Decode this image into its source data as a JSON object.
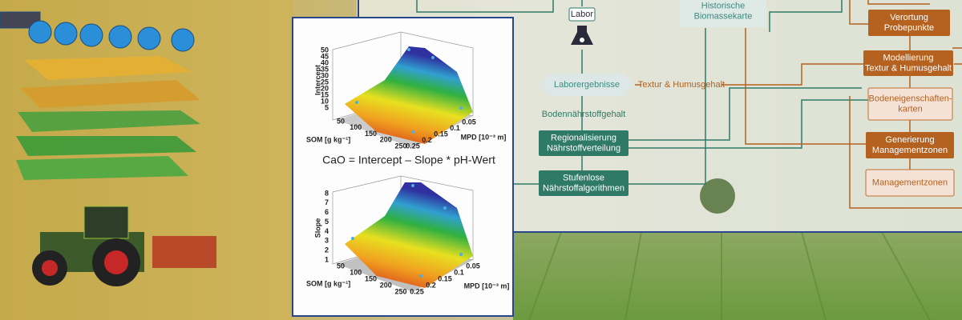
{
  "plots": [
    {
      "z_label": "Intercept",
      "zticks": [
        5,
        10,
        15,
        20,
        25,
        30,
        35,
        40,
        45,
        50
      ],
      "x_label": "SOM [g kg⁻¹]",
      "xticks": [
        50,
        100,
        150,
        200,
        250
      ],
      "y_label": "MPD [10⁻³ m]",
      "yticks": [
        0.05,
        0.1,
        0.15,
        0.2,
        0.25
      ]
    },
    {
      "z_label": "Slope",
      "zticks": [
        1,
        2,
        3,
        4,
        5,
        6,
        7,
        8
      ],
      "x_label": "SOM [g kg⁻¹]",
      "xticks": [
        50,
        100,
        150,
        200,
        250
      ],
      "y_label": "MPD [10⁻³ m]",
      "yticks": [
        0.05,
        0.1,
        0.15,
        0.2,
        0.25
      ]
    }
  ],
  "formula": "CaO = Intercept – Slope * pH-Wert",
  "flowchart": {
    "nodes": [
      {
        "lines": [
          "Labor"
        ]
      },
      {
        "lines": [
          "Historische",
          "Biomassekarte"
        ]
      },
      {
        "lines": [
          "Verortung",
          "Probepunkte"
        ]
      },
      {
        "lines": [
          "Laborergebnisse"
        ]
      },
      {
        "lines": [
          "Modellierung",
          "Textur & Humusgehalt"
        ]
      },
      {
        "lines": [
          "Bodeneigenschaften-",
          "karten"
        ]
      },
      {
        "lines": [
          "Regionalisierung",
          "Nährstoffverteilung"
        ]
      },
      {
        "lines": [
          "Generierung",
          "Managementzonen"
        ]
      },
      {
        "lines": [
          "Stufenlose",
          "Nährstoffalgorithmen"
        ]
      },
      {
        "lines": [
          "Managementzonen"
        ]
      }
    ],
    "edge_labels": [
      "Textur & Humusgehalt",
      "Bodennährstoffgehalt"
    ]
  }
}
